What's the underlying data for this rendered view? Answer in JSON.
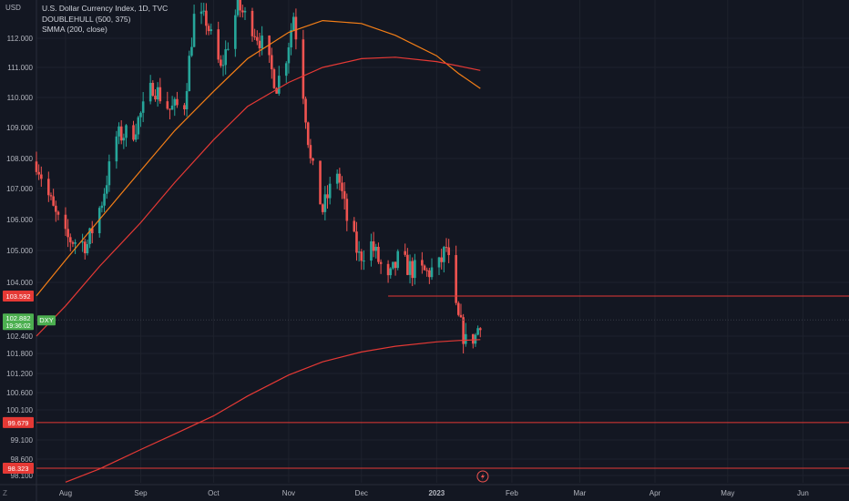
{
  "legend": {
    "symbol_line": "U.S. Dollar Currency Index, 1D, TVC",
    "ind1": "DOUBLEHULL (500, 375)",
    "ind2": "SMMA (200, close)"
  },
  "axis": {
    "currency": "USD",
    "corner": "Z"
  },
  "colors": {
    "background": "#131722",
    "up": "#26a69a",
    "down": "#ef5350",
    "hull": "#f57f17",
    "smma": "#e53935",
    "hline": "#e53935",
    "price_tag": "#4caf50"
  },
  "price_tag": {
    "price": "102.882",
    "countdown": "19:36:02",
    "symbol": "DXY"
  },
  "hline_labels": [
    "103.592",
    "99.679",
    "98.323"
  ],
  "chart_data": {
    "type": "candlestick",
    "title": "U.S. Dollar Currency Index, 1D, TVC",
    "ylim": [
      97.8,
      113.3
    ],
    "y_ticks": [
      112.0,
      111.0,
      110.0,
      109.0,
      108.0,
      107.0,
      106.0,
      105.0,
      104.0,
      102.4,
      101.8,
      101.2,
      100.6,
      100.1,
      99.1,
      98.6,
      98.1
    ],
    "y_tick_labels": [
      "112.000",
      "111.000",
      "110.000",
      "109.000",
      "108.000",
      "107.000",
      "106.000",
      "105.000",
      "104.000",
      "102.400",
      "101.800",
      "101.200",
      "100.600",
      "100.100",
      "99.100",
      "98.600",
      "98.100"
    ],
    "x_tick_labels": [
      "Aug",
      "Sep",
      "Oct",
      "Nov",
      "Dec",
      "2023",
      "Feb",
      "Mar",
      "Apr",
      "May",
      "Jun"
    ],
    "x_tick_dates": [
      "2022-08-01",
      "2022-09-01",
      "2022-10-01",
      "2022-11-01",
      "2022-12-01",
      "2023-01-01",
      "2023-02-01",
      "2023-03-01",
      "2023-04-01",
      "2023-05-01",
      "2023-06-01"
    ],
    "x_range": [
      "2022-07-20",
      "2023-06-20"
    ],
    "close_anchors": [
      [
        "2022-07-20",
        107.9
      ],
      [
        "2022-07-27",
        106.3
      ],
      [
        "2022-08-01",
        105.4
      ],
      [
        "2022-08-10",
        105.2
      ],
      [
        "2022-08-16",
        106.6
      ],
      [
        "2022-08-22",
        108.7
      ],
      [
        "2022-08-29",
        108.9
      ],
      [
        "2022-09-02",
        109.6
      ],
      [
        "2022-09-06",
        110.4
      ],
      [
        "2022-09-13",
        109.6
      ],
      [
        "2022-09-19",
        109.8
      ],
      [
        "2022-09-23",
        112.7
      ],
      [
        "2022-09-28",
        112.6
      ],
      [
        "2022-10-04",
        110.9
      ],
      [
        "2022-10-11",
        113.1
      ],
      [
        "2022-10-17",
        112.4
      ],
      [
        "2022-10-21",
        111.8
      ],
      [
        "2022-10-27",
        110.4
      ],
      [
        "2022-10-31",
        111.4
      ],
      [
        "2022-11-03",
        112.8
      ],
      [
        "2022-11-07",
        110.2
      ],
      [
        "2022-11-10",
        107.9
      ],
      [
        "2022-11-15",
        106.3
      ],
      [
        "2022-11-21",
        107.6
      ],
      [
        "2022-11-25",
        106.0
      ],
      [
        "2022-11-30",
        104.8
      ],
      [
        "2022-12-05",
        105.2
      ],
      [
        "2022-12-12",
        104.0
      ],
      [
        "2022-12-16",
        104.7
      ],
      [
        "2022-12-22",
        104.4
      ],
      [
        "2022-12-28",
        104.3
      ],
      [
        "2023-01-02",
        104.5
      ],
      [
        "2023-01-05",
        105.1
      ],
      [
        "2023-01-09",
        103.1
      ],
      [
        "2023-01-13",
        102.2
      ],
      [
        "2023-01-17",
        102.4
      ],
      [
        "2023-01-19",
        102.9
      ]
    ],
    "series": [
      {
        "name": "DOUBLEHULL (500, 375)",
        "type": "line",
        "points": [
          [
            "2022-07-20",
            103.6
          ],
          [
            "2022-08-01",
            104.7
          ],
          [
            "2022-08-15",
            106.0
          ],
          [
            "2022-09-01",
            107.6
          ],
          [
            "2022-09-15",
            108.9
          ],
          [
            "2022-10-01",
            110.2
          ],
          [
            "2022-10-15",
            111.3
          ],
          [
            "2022-11-01",
            112.2
          ],
          [
            "2022-11-15",
            112.6
          ],
          [
            "2022-12-01",
            112.5
          ],
          [
            "2022-12-15",
            112.1
          ],
          [
            "2023-01-01",
            111.4
          ],
          [
            "2023-01-10",
            110.8
          ],
          [
            "2023-01-19",
            110.3
          ]
        ]
      },
      {
        "name": "SMMA (200, close)",
        "type": "line",
        "points": [
          [
            "2022-07-20",
            102.4
          ],
          [
            "2022-08-01",
            103.3
          ],
          [
            "2022-08-15",
            104.5
          ],
          [
            "2022-09-01",
            105.9
          ],
          [
            "2022-09-15",
            107.2
          ],
          [
            "2022-10-01",
            108.6
          ],
          [
            "2022-10-15",
            109.7
          ],
          [
            "2022-11-01",
            110.5
          ],
          [
            "2022-11-15",
            111.0
          ],
          [
            "2022-12-01",
            111.3
          ],
          [
            "2022-12-15",
            111.35
          ],
          [
            "2023-01-01",
            111.2
          ],
          [
            "2023-01-10",
            111.05
          ],
          [
            "2023-01-19",
            110.9
          ]
        ]
      },
      {
        "name": "",
        "type": "line",
        "points": [
          [
            "2022-08-01",
            97.9
          ],
          [
            "2022-08-15",
            98.3
          ],
          [
            "2022-09-01",
            98.85
          ],
          [
            "2022-09-15",
            99.3
          ],
          [
            "2022-10-01",
            99.9
          ],
          [
            "2022-10-15",
            100.5
          ],
          [
            "2022-11-01",
            101.15
          ],
          [
            "2022-11-15",
            101.55
          ],
          [
            "2022-12-01",
            101.85
          ],
          [
            "2022-12-15",
            102.05
          ],
          [
            "2023-01-01",
            102.2
          ],
          [
            "2023-01-10",
            102.25
          ],
          [
            "2023-01-19",
            102.28
          ]
        ]
      }
    ],
    "hlines": [
      {
        "price": 103.592,
        "from": "2022-12-12"
      },
      {
        "price": 99.679,
        "from": "2022-07-20"
      },
      {
        "price": 98.323,
        "from": "2022-07-20"
      }
    ],
    "grid": true
  }
}
